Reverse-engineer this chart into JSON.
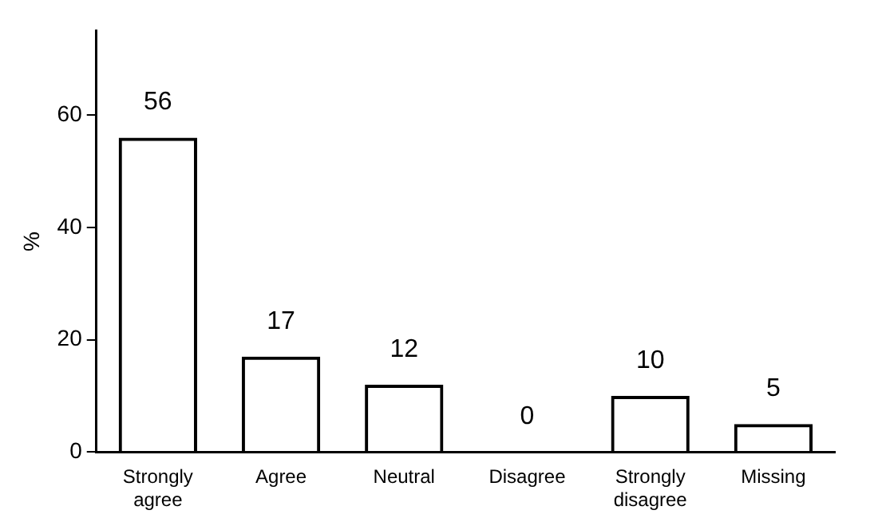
{
  "chart_data": {
    "type": "bar",
    "ylabel": "%",
    "categories": [
      "Strongly agree",
      "Agree",
      "Neutral",
      "Disagree",
      "Strongly disagree",
      "Missing"
    ],
    "values": [
      56,
      17,
      12,
      0,
      10,
      5
    ],
    "color": "#000000",
    "ylim": [
      0,
      75
    ],
    "yticks": [
      0,
      20,
      40,
      60
    ],
    "grid": false,
    "data_labels": true,
    "legend": false
  }
}
